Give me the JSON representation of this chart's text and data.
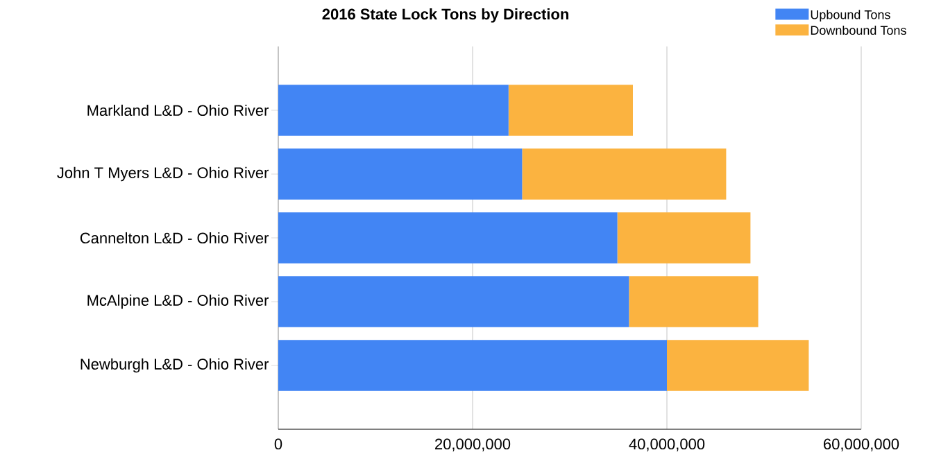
{
  "chart_data": {
    "type": "bar",
    "orientation": "horizontal",
    "stacked": true,
    "title": "2016 State Lock Tons by Direction",
    "categories": [
      "Markland L&D - Ohio River",
      "John T Myers L&D - Ohio River",
      "Cannelton L&D - Ohio River",
      "McAlpine L&D - Ohio River",
      "Newburgh L&D - Ohio River"
    ],
    "series": [
      {
        "name": "Upbound Tons",
        "color": "#4285f4",
        "values": [
          23700000,
          25100000,
          34900000,
          36100000,
          40000000
        ]
      },
      {
        "name": "Downbound Tons",
        "color": "#fbb340",
        "values": [
          12800000,
          21000000,
          13700000,
          13300000,
          14600000
        ]
      }
    ],
    "xlim": [
      0,
      60000000
    ],
    "xticks": [
      0,
      {
        "value": 20000000,
        "label": "20,000,000"
      },
      {
        "value": 40000000,
        "label": "40,000,000"
      },
      {
        "value": 60000000,
        "label": "60,000,000"
      }
    ],
    "grid": "x",
    "legend": "top right"
  }
}
